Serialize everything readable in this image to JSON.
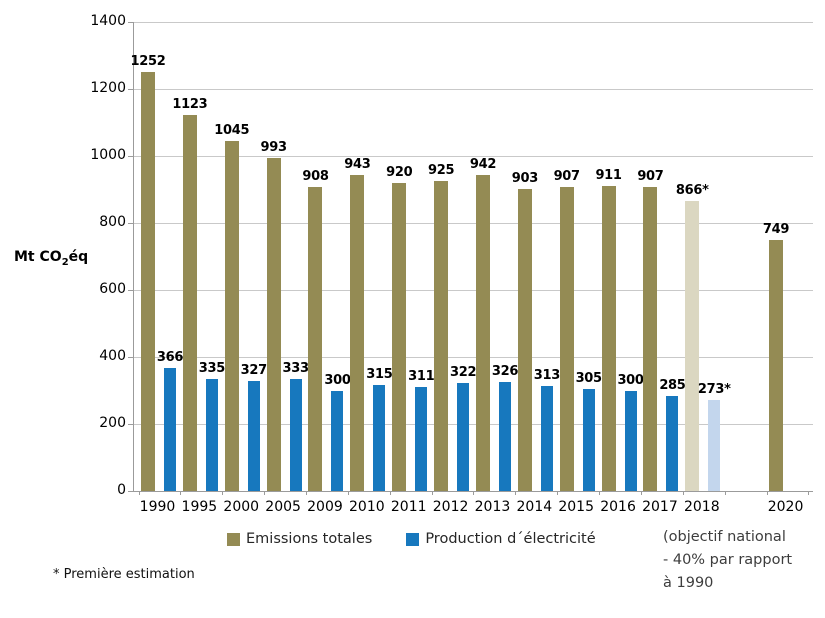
{
  "chart_data": {
    "type": "bar",
    "ylabel": {
      "prefix": "Mt CO",
      "sub": "2",
      "suffix": "éq"
    },
    "ylim": [
      0,
      1400
    ],
    "yticks": [
      1400,
      1200,
      1000,
      800,
      600,
      400,
      200,
      0
    ],
    "grid": true,
    "legend_position": "bottom",
    "categories": [
      "1990",
      "1995",
      "2000",
      "2005",
      "2009",
      "2010",
      "2011",
      "2012",
      "2013",
      "2014",
      "2015",
      "2016",
      "2017",
      "2018",
      "",
      "2020"
    ],
    "estimate_category": "2018",
    "estimate_marker": "*",
    "series": [
      {
        "name": "Emissions totales",
        "color": "#948B54",
        "estimate_color": "#DBD7C1",
        "values": [
          1252,
          1123,
          1045,
          993,
          908,
          943,
          920,
          925,
          942,
          903,
          907,
          911,
          907,
          866,
          null,
          749
        ]
      },
      {
        "name": "Production d´électricité",
        "color": "#1778BE",
        "estimate_color": "#C3D6ED",
        "values": [
          366,
          335,
          327,
          333,
          300,
          315,
          311,
          322,
          326,
          313,
          305,
          300,
          285,
          273,
          null,
          null
        ]
      }
    ]
  },
  "notes": {
    "footnote": "* Première estimation",
    "target_note_lines": [
      "(objectif national",
      "- 40% par rapport",
      "à 1990"
    ]
  },
  "colors": {
    "gridline": "#C9C9C9",
    "axis": "#9B9B9B"
  }
}
